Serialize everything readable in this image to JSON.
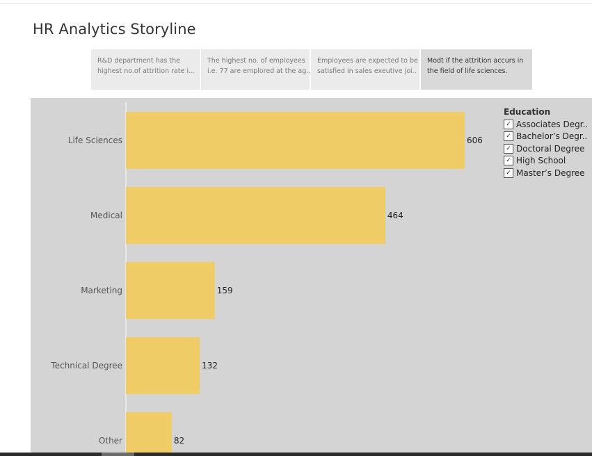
{
  "page": {
    "title": "HR Analytics Storyline"
  },
  "story_points": [
    {
      "line1": "R&D department has the",
      "line2": "highest no.of attrition rate i..."
    },
    {
      "line1": "The highest no. of employees",
      "line2": "i.e. 77 are emplored at the ag.."
    },
    {
      "line1": "Employees are expected to be",
      "line2": "satisfied in sales exeutive joi.."
    },
    {
      "line1": "Modt if the attrition accurs in",
      "line2": "the field of life sciences."
    }
  ],
  "legend": {
    "title": "Education",
    "check_glyph": "✓",
    "items": [
      {
        "label": "Associates Degr..",
        "checked": true
      },
      {
        "label": "Bachelor’s Degr..",
        "checked": true
      },
      {
        "label": "Doctoral Degree",
        "checked": true
      },
      {
        "label": "High School",
        "checked": true
      },
      {
        "label": "Master’s Degree",
        "checked": true
      }
    ]
  },
  "chart_data": {
    "type": "bar",
    "orientation": "horizontal",
    "categories": [
      "Life Sciences",
      "Medical",
      "Marketing",
      "Technical Degree",
      "Other"
    ],
    "values": [
      606,
      464,
      159,
      132,
      82
    ],
    "value_labels": [
      "606",
      "464",
      "159",
      "132",
      "82"
    ],
    "bar_color": "#f0cc66",
    "xlim": [
      0,
      700
    ],
    "grid": false,
    "legend_placement": "top-right"
  }
}
